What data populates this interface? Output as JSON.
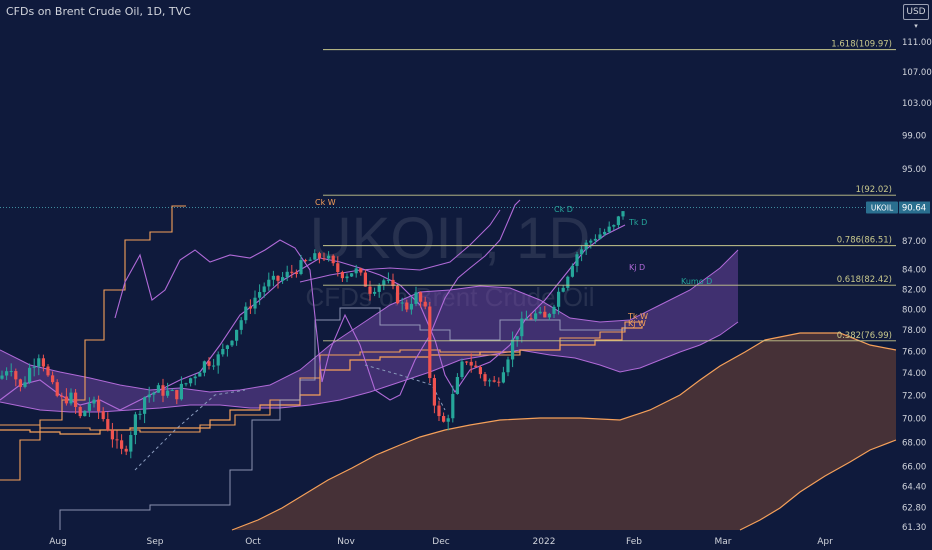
{
  "header": {
    "title": "CFDs on Brent Crude Oil, 1D, TVC"
  },
  "currency": "USD",
  "watermark": {
    "symbol": "UKOIL, 1D",
    "description": "CFDs on Brent Crude Oil"
  },
  "colors": {
    "background": "#0f1a3c",
    "up": "#26a69a",
    "down": "#ef5350",
    "orange": "#f5a05a",
    "purple": "#b06ad8",
    "fib": "#c8c88c",
    "kumo_fill": "#7c4bb0",
    "weekly_kumo_fill": "#5a3a36",
    "price_label": "#2a6f8f"
  },
  "chart_data": {
    "type": "candlestick",
    "title": "CFDs on Brent Crude Oil, 1D, TVC",
    "x_tick_labels": [
      "Aug",
      "Sep",
      "Oct",
      "Nov",
      "Dec",
      "2022",
      "Feb",
      "Mar",
      "Apr"
    ],
    "y_tick_labels": [
      "111.00",
      "107.00",
      "103.00",
      "99.00",
      "95.00",
      "87.00",
      "84.00",
      "82.00",
      "80.00",
      "78.00",
      "76.00",
      "74.00",
      "72.00",
      "70.00",
      "68.00",
      "66.00",
      "64.40",
      "62.80",
      "61.30"
    ],
    "y_scale": "log",
    "y_range": [
      60.5,
      115.5
    ],
    "current_price": {
      "label": "UKOIL",
      "value": "90.64"
    },
    "fib_levels": [
      {
        "label": "1.618(109.97)",
        "value": 109.97
      },
      {
        "label": "1(92.02)",
        "value": 92.02
      },
      {
        "label": "0.786(86.51)",
        "value": 86.51
      },
      {
        "label": "0.618(82.42)",
        "value": 82.42
      },
      {
        "label": "0.382(76.99)",
        "value": 76.99
      }
    ],
    "line_labels": [
      {
        "text": "Ck W",
        "color": "orange"
      },
      {
        "text": "Ck D",
        "color": "up"
      },
      {
        "text": "Tk D",
        "color": "up"
      },
      {
        "text": "Kj D",
        "color": "purple"
      },
      {
        "text": "Kumo D",
        "color": "up"
      },
      {
        "text": "Tk W",
        "color": "orange"
      },
      {
        "text": "Kj W",
        "color": "orange"
      }
    ],
    "grid": false
  }
}
